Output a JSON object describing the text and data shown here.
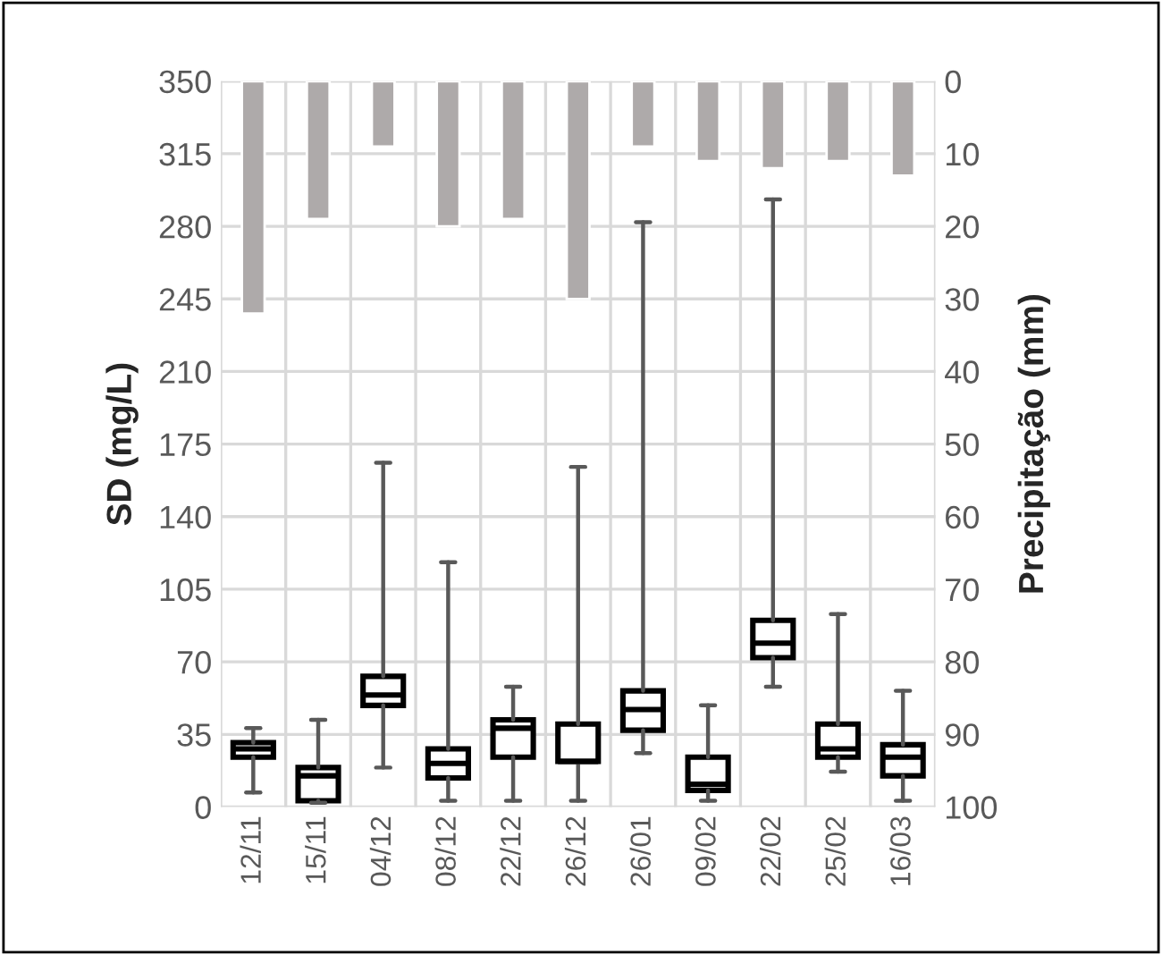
{
  "chart_data": {
    "type": "box",
    "ylabel": "SD (mg/L)",
    "y2label": "Precipitação (mm)",
    "categories": [
      "12/11",
      "15/11",
      "04/12",
      "08/12",
      "22/12",
      "26/12",
      "26/01",
      "09/02",
      "22/02",
      "25/02",
      "16/03"
    ],
    "ylim": [
      0,
      350
    ],
    "yticks": [
      0,
      35,
      70,
      105,
      140,
      175,
      210,
      245,
      280,
      315,
      350
    ],
    "y2lim": [
      100,
      0
    ],
    "y2ticks": [
      0,
      10,
      20,
      30,
      40,
      50,
      60,
      70,
      80,
      90,
      100
    ],
    "grid": true,
    "series": [
      {
        "color": "#000000",
        "boxes": [
          {
            "low": 7,
            "q1": 24,
            "median": 28,
            "q3": 31,
            "high": 38
          },
          {
            "low": 2,
            "q1": 3,
            "median": 15,
            "q3": 19,
            "high": 42
          },
          {
            "low": 19,
            "q1": 49,
            "median": 54,
            "q3": 63,
            "high": 166
          },
          {
            "low": 3,
            "q1": 14,
            "median": 21,
            "q3": 28,
            "high": 118
          },
          {
            "low": 3,
            "q1": 24,
            "median": 38,
            "q3": 42,
            "high": 58
          },
          {
            "low": 3,
            "q1": 22,
            "median": 22,
            "q3": 40,
            "high": 164
          },
          {
            "low": 26,
            "q1": 37,
            "median": 47,
            "q3": 56,
            "high": 282
          },
          {
            "low": 3,
            "q1": 8,
            "median": 11,
            "q3": 24,
            "high": 49
          },
          {
            "low": 58,
            "q1": 72,
            "median": 79,
            "q3": 90,
            "high": 293
          },
          {
            "low": 17,
            "q1": 24,
            "median": 28,
            "q3": 40,
            "high": 93
          },
          {
            "low": 3,
            "q1": 15,
            "median": 24,
            "q3": 30,
            "high": 56
          }
        ]
      },
      {
        "type": "bar",
        "axis": "y2",
        "color": "#aeaaaa",
        "values": [
          32,
          19,
          9,
          20,
          19,
          30,
          9,
          11,
          12,
          11,
          13
        ]
      }
    ]
  }
}
